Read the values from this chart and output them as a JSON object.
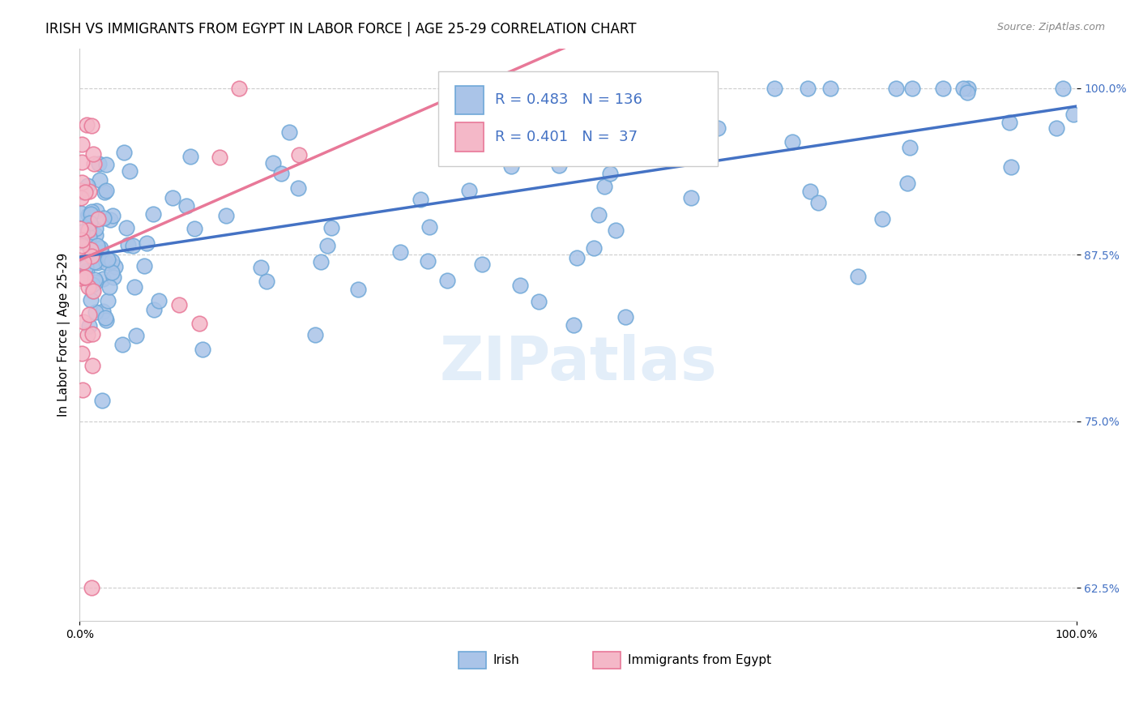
{
  "title": "IRISH VS IMMIGRANTS FROM EGYPT IN LABOR FORCE | AGE 25-29 CORRELATION CHART",
  "source": "Source: ZipAtlas.com",
  "ylabel": "In Labor Force | Age 25-29",
  "xlim": [
    0.0,
    1.0
  ],
  "ylim": [
    0.6,
    1.03
  ],
  "ytick_positions": [
    0.625,
    0.75,
    0.875,
    1.0
  ],
  "ytick_labels": [
    "62.5%",
    "75.0%",
    "87.5%",
    "100.0%"
  ],
  "grid_color": "#cccccc",
  "background_color": "#ffffff",
  "irish_color": "#aac4e8",
  "irish_edge_color": "#6fa8d8",
  "egypt_color": "#f4b8c8",
  "egypt_edge_color": "#e87898",
  "irish_R": 0.483,
  "irish_N": 136,
  "egypt_R": 0.401,
  "egypt_N": 37,
  "irish_line_color": "#4472c4",
  "egypt_line_color": "#e87898",
  "legend_label_irish": "Irish",
  "legend_label_egypt": "Immigrants from Egypt",
  "watermark": "ZIPatlas",
  "title_fontsize": 12,
  "axis_label_fontsize": 11,
  "tick_fontsize": 10,
  "legend_fontsize": 13
}
